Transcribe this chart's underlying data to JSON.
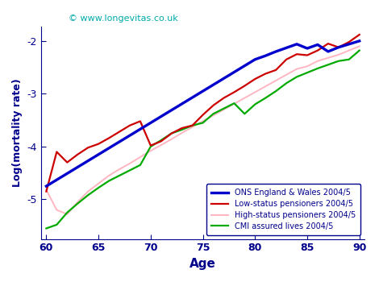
{
  "ages": [
    60,
    61,
    62,
    63,
    64,
    65,
    66,
    67,
    68,
    69,
    70,
    71,
    72,
    73,
    74,
    75,
    76,
    77,
    78,
    79,
    80,
    81,
    82,
    83,
    84,
    85,
    86,
    87,
    88,
    89,
    90
  ],
  "ons": [
    -4.75,
    -4.63,
    -4.51,
    -4.39,
    -4.27,
    -4.15,
    -4.03,
    -3.91,
    -3.79,
    -3.67,
    -3.55,
    -3.43,
    -3.31,
    -3.19,
    -3.07,
    -2.95,
    -2.83,
    -2.71,
    -2.59,
    -2.47,
    -2.35,
    -2.28,
    -2.2,
    -2.13,
    -2.06,
    -2.14,
    -2.07,
    -2.2,
    -2.12,
    -2.06,
    -2.0
  ],
  "low_status": [
    -4.85,
    -4.1,
    -4.3,
    -4.15,
    -4.02,
    -3.95,
    -3.84,
    -3.72,
    -3.6,
    -3.52,
    -3.98,
    -3.9,
    -3.75,
    -3.65,
    -3.6,
    -3.4,
    -3.22,
    -3.08,
    -2.97,
    -2.85,
    -2.72,
    -2.62,
    -2.55,
    -2.35,
    -2.25,
    -2.27,
    -2.18,
    -2.05,
    -2.12,
    -2.02,
    -1.88
  ],
  "high_status": [
    -4.82,
    -5.2,
    -5.28,
    -5.05,
    -4.85,
    -4.7,
    -4.55,
    -4.43,
    -4.32,
    -4.2,
    -4.08,
    -3.97,
    -3.86,
    -3.74,
    -3.63,
    -3.52,
    -3.41,
    -3.3,
    -3.19,
    -3.08,
    -2.97,
    -2.86,
    -2.75,
    -2.64,
    -2.53,
    -2.48,
    -2.38,
    -2.32,
    -2.26,
    -2.18,
    -2.1
  ],
  "cmi": [
    -5.55,
    -5.48,
    -5.25,
    -5.08,
    -4.92,
    -4.78,
    -4.65,
    -4.55,
    -4.45,
    -4.35,
    -4.0,
    -3.88,
    -3.75,
    -3.68,
    -3.6,
    -3.55,
    -3.38,
    -3.28,
    -3.18,
    -3.38,
    -3.2,
    -3.08,
    -2.95,
    -2.8,
    -2.68,
    -2.6,
    -2.52,
    -2.45,
    -2.38,
    -2.35,
    -2.18
  ],
  "ons_color": "#0000cc",
  "low_status_color": "#cc0000",
  "high_status_color": "#ffb6c1",
  "cmi_color": "#00aa00",
  "title": "© www.longevitas.co.uk",
  "xlabel": "Age",
  "ylabel": "Log(mortality rate)",
  "xlim": [
    59.5,
    90.5
  ],
  "ylim": [
    -5.75,
    -1.72
  ],
  "yticks": [
    -5,
    -4,
    -3,
    -2
  ],
  "xticks": [
    60,
    65,
    70,
    75,
    80,
    85,
    90
  ],
  "legend_labels": [
    "ONS England & Wales 2004/5",
    "Low-status pensioners 2004/5",
    "High-status pensioners 2004/5",
    "CMI assured lives 2004/5"
  ],
  "text_color": "#00008b",
  "title_color": "#00aaaa"
}
